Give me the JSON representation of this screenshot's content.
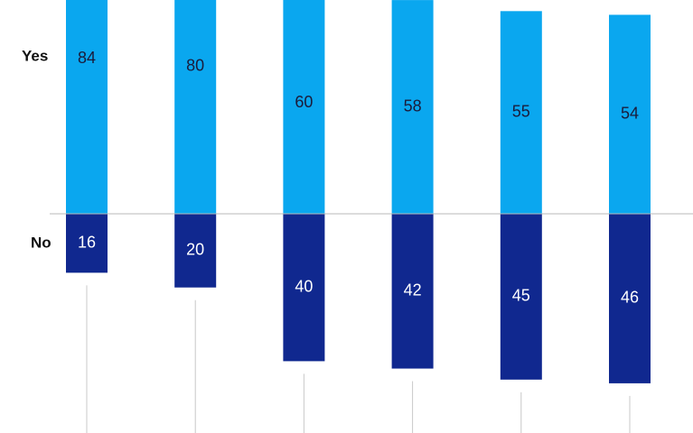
{
  "chart_data": {
    "type": "diverging-bar",
    "categories": [
      null,
      null,
      null,
      null,
      null,
      null
    ],
    "series": [
      {
        "name": "Yes",
        "color": "#0aa7ef",
        "values": [
          84,
          80,
          60,
          58,
          55,
          54
        ]
      },
      {
        "name": "No",
        "color": "#10288f",
        "values": [
          16,
          20,
          40,
          42,
          45,
          46
        ]
      }
    ]
  }
}
